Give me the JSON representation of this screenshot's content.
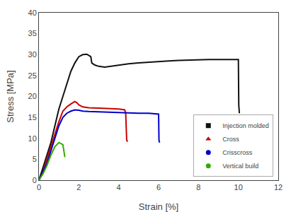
{
  "chart_data": {
    "type": "line",
    "xlabel": "Strain [%]",
    "ylabel": "Stress [MPa]",
    "xlim": [
      0,
      12
    ],
    "ylim": [
      0,
      40
    ],
    "xticks": [
      0,
      2,
      4,
      6,
      8,
      10,
      12
    ],
    "yticks": [
      0,
      5,
      10,
      15,
      20,
      25,
      30,
      35,
      40
    ],
    "grid": false,
    "legend": "lower right",
    "series": [
      {
        "name": "Injection molded",
        "color": "#111111",
        "marker": "square",
        "x": [
          0,
          0.2,
          0.4,
          0.6,
          0.8,
          1.0,
          1.2,
          1.4,
          1.6,
          1.8,
          2.0,
          2.2,
          2.4,
          2.6,
          2.65,
          2.8,
          3.0,
          3.3,
          3.6,
          4.0,
          4.5,
          5.0,
          5.5,
          6.0,
          6.5,
          7.0,
          7.5,
          8.0,
          8.5,
          9.0,
          9.5,
          10.0,
          10.02,
          10.05
        ],
        "values": [
          0,
          3,
          6,
          9,
          13,
          17,
          20,
          23,
          26,
          28,
          29.5,
          30.0,
          30.1,
          29.5,
          28.0,
          27.5,
          27.2,
          27.0,
          27.2,
          27.5,
          27.8,
          28.0,
          28.2,
          28.4,
          28.5,
          28.6,
          28.7,
          28.7,
          28.8,
          28.8,
          28.8,
          28.8,
          18.0,
          16.0
        ]
      },
      {
        "name": "Cross",
        "color": "#cc0000",
        "marker": "triangle-up",
        "x": [
          0,
          0.2,
          0.4,
          0.6,
          0.8,
          1.0,
          1.2,
          1.4,
          1.6,
          1.8,
          1.9,
          2.0,
          2.2,
          2.5,
          3.0,
          3.5,
          4.0,
          4.3,
          4.35,
          4.4,
          4.45
        ],
        "values": [
          0,
          2,
          5,
          8,
          11,
          14,
          16.5,
          17.5,
          18.2,
          18.8,
          18.5,
          18.0,
          17.5,
          17.3,
          17.2,
          17.1,
          17.0,
          16.8,
          16.0,
          9.5,
          9.2
        ]
      },
      {
        "name": "Crisscross",
        "color": "#0000cc",
        "marker": "circle",
        "x": [
          0,
          0.2,
          0.4,
          0.6,
          0.8,
          1.0,
          1.2,
          1.4,
          1.6,
          1.8,
          2.0,
          2.2,
          2.5,
          3.0,
          3.5,
          4.0,
          4.5,
          5.0,
          5.5,
          6.0,
          6.02,
          6.05
        ],
        "values": [
          0,
          2,
          4,
          7,
          10,
          13,
          15,
          16.0,
          16.5,
          16.8,
          16.7,
          16.5,
          16.4,
          16.3,
          16.2,
          16.2,
          16.1,
          16.0,
          16.0,
          15.8,
          9.5,
          9.0
        ]
      },
      {
        "name": "Vertical build",
        "color": "#33aa00",
        "marker": "circle",
        "x": [
          0,
          0.2,
          0.4,
          0.6,
          0.8,
          1.0,
          1.2,
          1.25,
          1.3
        ],
        "values": [
          0,
          1.5,
          3.5,
          6.0,
          8.0,
          9.0,
          8.5,
          7.0,
          5.5
        ]
      }
    ]
  }
}
